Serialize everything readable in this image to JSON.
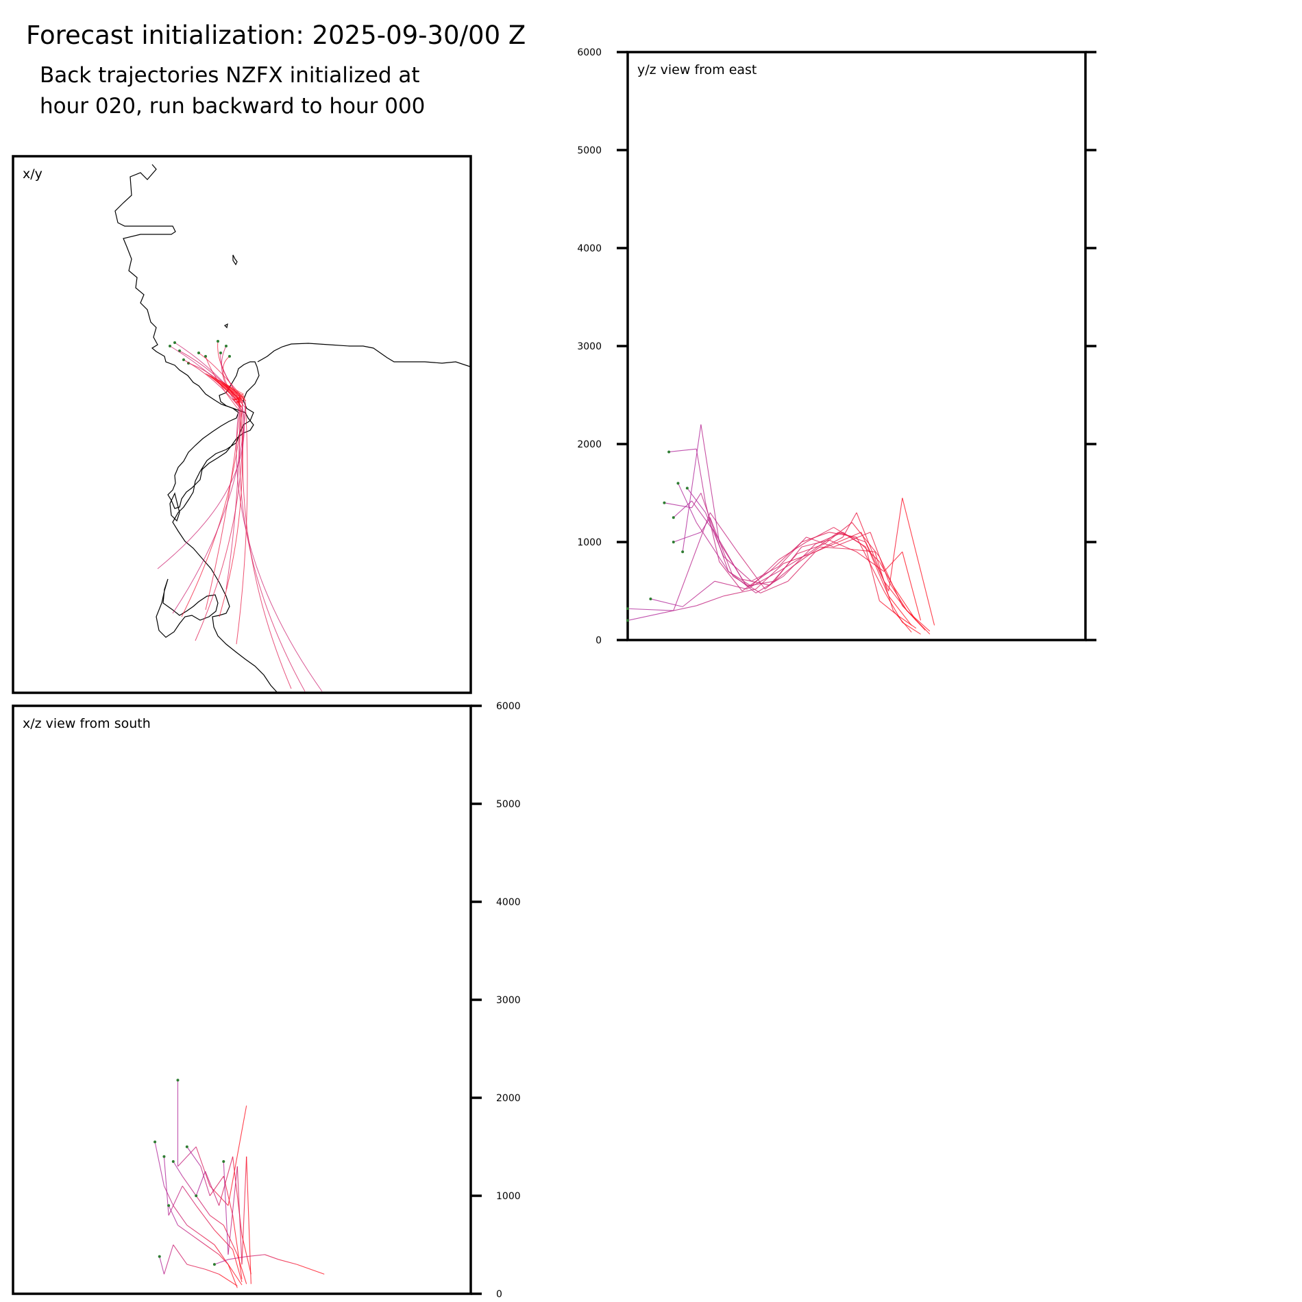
{
  "header": {
    "title": "Forecast initialization: 2025-09-30/00 Z",
    "subtitle_line1": "Back trajectories NZFX initialized at",
    "subtitle_line2": "hour 020, run backward to hour 000"
  },
  "colors": {
    "trajectory_early": "#b0279a",
    "trajectory_late": "#ff1020",
    "endpoint_marker": "#2e7d32",
    "coastline": "#000000"
  },
  "chart_data": [
    {
      "type": "line",
      "panel": "x/y",
      "title": "x/y",
      "grid": false,
      "has_coastline": true
    },
    {
      "type": "line",
      "panel": "y/z",
      "title": "y/z view from east",
      "ylim": [
        0,
        6000
      ],
      "yticks": [
        0,
        1000,
        2000,
        3000,
        4000,
        5000,
        6000
      ],
      "ytick_labels": [
        "0",
        "1000",
        "2000",
        "3000",
        "4000",
        "5000",
        "6000"
      ],
      "yaxis_side": "left",
      "grid": false,
      "series": [
        {
          "x": [
            0.0,
            0.1,
            0.18,
            0.24,
            0.3,
            0.36,
            0.42,
            0.48,
            0.54,
            0.58,
            0.62
          ],
          "y": [
            320,
            300,
            1300,
            900,
            520,
            750,
            950,
            930,
            900,
            300,
            80
          ]
        },
        {
          "x": [
            0.09,
            0.15,
            0.17,
            0.2,
            0.25,
            0.31,
            0.38,
            0.44,
            0.5,
            0.56,
            0.6,
            0.64
          ],
          "y": [
            1920,
            1950,
            1400,
            800,
            500,
            700,
            1000,
            1100,
            1050,
            500,
            180,
            60
          ]
        },
        {
          "x": [
            0.08,
            0.14,
            0.16,
            0.22,
            0.27,
            0.33,
            0.39,
            0.45,
            0.52,
            0.55,
            0.59,
            0.63
          ],
          "y": [
            1400,
            1350,
            1500,
            700,
            550,
            820,
            1000,
            1150,
            950,
            400,
            250,
            120
          ]
        },
        {
          "x": [
            0.1,
            0.16,
            0.18,
            0.23,
            0.29,
            0.35,
            0.41,
            0.47,
            0.5,
            0.56,
            0.61,
            0.65
          ],
          "y": [
            1000,
            1100,
            1250,
            650,
            480,
            600,
            900,
            1050,
            1300,
            600,
            300,
            100
          ]
        },
        {
          "x": [
            0.0,
            0.08,
            0.15,
            0.21,
            0.28,
            0.34,
            0.4,
            0.46,
            0.51,
            0.57,
            0.62
          ],
          "y": [
            200,
            280,
            350,
            450,
            520,
            780,
            880,
            1000,
            1100,
            450,
            150
          ]
        },
        {
          "x": [
            0.1,
            0.14,
            0.19,
            0.25,
            0.31,
            0.37,
            0.43,
            0.49,
            0.55,
            0.6,
            0.66
          ],
          "y": [
            1250,
            1420,
            1100,
            620,
            560,
            880,
            980,
            1200,
            850,
            350,
            60
          ]
        },
        {
          "x": [
            0.12,
            0.16,
            0.2,
            0.26,
            0.32,
            0.38,
            0.44,
            0.5,
            0.56,
            0.6,
            0.64
          ],
          "y": [
            900,
            2200,
            1000,
            550,
            600,
            950,
            1020,
            900,
            700,
            900,
            200
          ]
        },
        {
          "x": [
            0.05,
            0.12,
            0.19,
            0.26,
            0.33,
            0.4,
            0.46,
            0.52,
            0.57,
            0.6,
            0.67
          ],
          "y": [
            420,
            340,
            600,
            520,
            700,
            900,
            1100,
            1000,
            500,
            1450,
            150
          ]
        },
        {
          "x": [
            0.13,
            0.17,
            0.21,
            0.27,
            0.33,
            0.39,
            0.45,
            0.53,
            0.57,
            0.61,
            0.66
          ],
          "y": [
            1550,
            1300,
            850,
            600,
            750,
            1050,
            950,
            1100,
            600,
            300,
            90
          ]
        },
        {
          "x": [
            0.11,
            0.15,
            0.22,
            0.28,
            0.34,
            0.41,
            0.47,
            0.51,
            0.55,
            0.58,
            0.63
          ],
          "y": [
            1600,
            1200,
            700,
            480,
            650,
            980,
            1100,
            980,
            800,
            550,
            200
          ]
        }
      ]
    },
    {
      "type": "line",
      "panel": "x/z",
      "title": "x/z view from south",
      "ylim": [
        0,
        6000
      ],
      "yticks": [
        0,
        1000,
        2000,
        3000,
        4000,
        5000,
        6000
      ],
      "ytick_labels": [
        "0",
        "1000",
        "2000",
        "3000",
        "4000",
        "5000",
        "6000"
      ],
      "yaxis_side": "right",
      "grid": false,
      "series": [
        {
          "x": [
            0.31,
            0.33,
            0.35,
            0.38,
            0.41,
            0.44,
            0.47,
            0.49
          ],
          "y": [
            1550,
            1100,
            900,
            700,
            600,
            500,
            300,
            60
          ]
        },
        {
          "x": [
            0.36,
            0.36,
            0.4,
            0.43,
            0.47,
            0.51
          ],
          "y": [
            2180,
            1300,
            1500,
            1100,
            900,
            1920
          ]
        },
        {
          "x": [
            0.35,
            0.37,
            0.4,
            0.43,
            0.46,
            0.49,
            0.51
          ],
          "y": [
            1350,
            1200,
            1000,
            800,
            700,
            400,
            100
          ]
        },
        {
          "x": [
            0.33,
            0.34,
            0.37,
            0.4,
            0.44,
            0.48,
            0.5
          ],
          "y": [
            1400,
            800,
            1100,
            900,
            650,
            450,
            120
          ]
        },
        {
          "x": [
            0.32,
            0.33,
            0.35,
            0.38,
            0.42,
            0.45,
            0.49
          ],
          "y": [
            380,
            200,
            500,
            300,
            250,
            200,
            80
          ]
        },
        {
          "x": [
            0.4,
            0.42,
            0.45,
            0.48,
            0.5,
            0.52
          ],
          "y": [
            1000,
            1250,
            900,
            1400,
            600,
            200
          ]
        },
        {
          "x": [
            0.44,
            0.47,
            0.51,
            0.55,
            0.58,
            0.62,
            0.68
          ],
          "y": [
            300,
            350,
            380,
            400,
            350,
            300,
            200
          ]
        },
        {
          "x": [
            0.38,
            0.41,
            0.43,
            0.46,
            0.48,
            0.5
          ],
          "y": [
            1500,
            1300,
            1000,
            1200,
            800,
            150
          ]
        },
        {
          "x": [
            0.34,
            0.36,
            0.39,
            0.42,
            0.45,
            0.47,
            0.5
          ],
          "y": [
            900,
            700,
            600,
            500,
            400,
            300,
            90
          ]
        },
        {
          "x": [
            0.46,
            0.47,
            0.49,
            0.5,
            0.51,
            0.52
          ],
          "y": [
            1350,
            400,
            1300,
            300,
            1400,
            100
          ]
        }
      ]
    }
  ]
}
